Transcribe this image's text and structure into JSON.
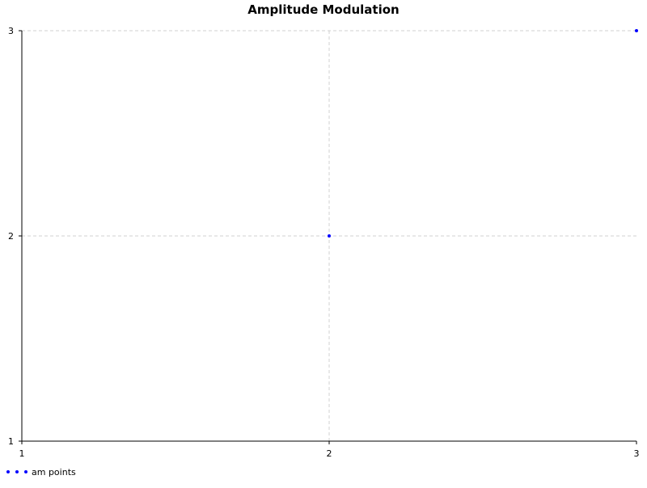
{
  "chart_data": {
    "type": "scatter",
    "title": "Amplitude Modulation",
    "xlabel": "",
    "ylabel": "",
    "xlim": [
      1,
      3
    ],
    "ylim": [
      1,
      3
    ],
    "x_ticks": [
      "1",
      "2",
      "3"
    ],
    "y_ticks": [
      "1",
      "2",
      "3"
    ],
    "grid": true,
    "legend_position": "bottom-left",
    "series": [
      {
        "name": "am points",
        "color": "#0000ff",
        "points": [
          {
            "x": 2,
            "y": 2
          },
          {
            "x": 3,
            "y": 3
          }
        ]
      }
    ]
  }
}
